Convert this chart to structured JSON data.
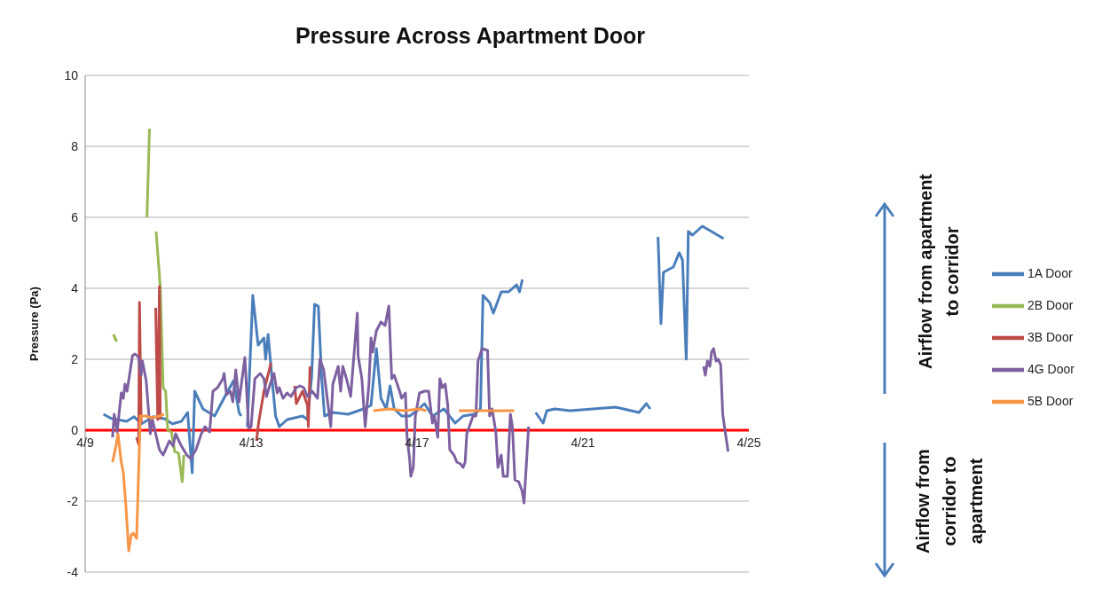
{
  "chart_data": {
    "type": "line",
    "title": "Pressure Across Apartment Door",
    "ylabel": "Pressure (Pa)",
    "annotations": [
      "Airflow from apartment to corridor",
      "Airflow from corridor to apartment"
    ],
    "xlim": [
      "--04-09",
      "--04-25"
    ],
    "xticks": [
      {
        "value": "--04-09",
        "label": "4/9"
      },
      {
        "value": "--04-13",
        "label": "4/13"
      },
      {
        "value": "--04-17",
        "label": "4/17"
      },
      {
        "value": "--04-21",
        "label": "4/21"
      },
      {
        "value": "--04-25",
        "label": "4/25"
      }
    ],
    "ylim": [
      -4,
      10
    ],
    "yticks": [
      -4,
      -2,
      0,
      2,
      4,
      6,
      8,
      10
    ],
    "grid": "y",
    "legend": "right",
    "marker": "none",
    "series": [
      {
        "name": "1A Door",
        "color": "#4a7ebb",
        "x": [
          "--04-09T10:34",
          "--04-09T15:07",
          "--04-10T00:00",
          "--04-10T04:19",
          "--04-10T08:38",
          "--04-10T15:22",
          "--04-10T22:05",
          "--04-11T02:24",
          "--04-11T07:41",
          "--04-11T11:17",
          "--04-11T13:55",
          "--04-11T15:22",
          "--04-11T20:10",
          "--04-12T02:53",
          "--04-12T09:22",
          "--04-12T13:55",
          "--04-12T17:02",
          "--04-12T18:14",
          "--04-12T20:24",
          "--04-12T21:50",
          "--04-13T00:58",
          "--04-13T04:05",
          "--04-13T07:26",
          "--04-13T08:24",
          "--04-13T09:50",
          "--04-13T12:00",
          "--04-13T14:10",
          "--04-13T16:19",
          "--04-13T20:53",
          "--04-14T01:12",
          "--04-14T05:46",
          "--04-14T08:38",
          "--04-14T11:02",
          "--04-14T12:43",
          "--04-14T14:53",
          "--04-14T16:48",
          "--04-14T18:29",
          "--04-14T23:17",
          "--04-15T08:10",
          "--04-15T17:02",
          "--04-15T21:22",
          "--04-16T00:29",
          "--04-16T03:07",
          "--04-16T06:14",
          "--04-16T08:24",
          "--04-16T10:48",
          "--04-16T15:07",
          "--04-16T19:41",
          "--04-17T00:00",
          "--04-17T04:19",
          "--04-17T08:53",
          "--04-17T15:36",
          "--04-17T22:05",
          "--04-18T02:38",
          "--04-18T09:07",
          "--04-18T12:43",
          "--04-18T14:10",
          "--04-18T18:00",
          "--04-18T20:10",
          "--04-19T00:43",
          "--04-19T05:02",
          "--04-19T09:36",
          "--04-19T11:17",
          "--04-19T12:58",
          "--04-19T16:48",
          "--04-19T20:38",
          "--04-20T00:58",
          "--04-20T03:07",
          "--04-20T07:41",
          "--04-20T16:34",
          "--04-21T05:46",
          "--04-21T18:58",
          "--04-22T08:24",
          "--04-22T12:43",
          "--04-22T14:53",
          "--04-22T16:48",
          "--04-22T19:26",
          "--04-22T21:07",
          "--04-22T22:34",
          "--04-23T04:19",
          "--04-23T07:41",
          "--04-23T09:36",
          "--04-23T11:46",
          "--04-23T12:58",
          "--04-23T15:22",
          "--04-23T21:07",
          "--04-24T02:24",
          "--04-24T09:22"
        ],
        "values": [
          0.45,
          0.33,
          0.25,
          0.38,
          0.18,
          0.38,
          0.32,
          0.18,
          0.25,
          0.5,
          -1.2,
          1.1,
          0.6,
          0.4,
          1.0,
          1.4,
          0.5,
          0.4,
          null,
          0.1,
          3.8,
          2.4,
          2.6,
          2.0,
          2.7,
          1.5,
          0.4,
          0.1,
          0.3,
          0.35,
          0.4,
          0.3,
          1.5,
          3.55,
          3.5,
          1.5,
          0.4,
          0.5,
          0.45,
          0.6,
          0.7,
          2.3,
          0.9,
          0.6,
          1.25,
          0.6,
          0.4,
          0.4,
          0.55,
          0.75,
          0.4,
          0.6,
          0.2,
          0.4,
          0.45,
          0.6,
          3.8,
          3.6,
          3.3,
          3.9,
          3.9,
          4.1,
          3.9,
          4.25,
          null,
          0.5,
          0.2,
          0.55,
          0.6,
          0.55,
          0.6,
          0.65,
          0.5,
          0.75,
          0.6,
          null,
          5.45,
          3.0,
          4.45,
          4.6,
          5.0,
          4.8,
          2.0,
          5.6,
          5.5,
          5.75,
          5.6,
          5.4
        ]
      },
      {
        "name": "2B Door",
        "color": "#98b954",
        "x": [
          "--04-09T16:19",
          "--04-09T18:14",
          "--04-09T21:36",
          "--04-10T11:46",
          "--04-10T13:12",
          "--04-10T14:24",
          "--04-10T17:02",
          "--04-10T19:26",
          "--04-10T21:07",
          "--04-10T22:34",
          "--04-10T23:46",
          "--04-11T01:55",
          "--04-11T03:50",
          "--04-11T06:00",
          "--04-11T08:10",
          "--04-11T09:07"
        ],
        "values": [
          2.7,
          2.5,
          null,
          6.0,
          8.5,
          null,
          5.6,
          4.05,
          1.2,
          1.1,
          0,
          -0.05,
          -0.6,
          -0.65,
          -1.45,
          -0.7
        ]
      },
      {
        "name": "3B Door",
        "color": "#be4b48",
        "x": [
          "--04-10T05:46",
          "--04-10T06:58",
          "--04-10T07:26",
          "--04-10T08:24",
          "--04-10T12:00",
          "--04-10T16:48",
          "--04-10T18:00",
          "--04-10T18:58",
          "--04-10T19:26",
          "--04-11T12:00",
          "--04-13T03:07",
          "--04-13T04:19",
          "--04-13T07:26",
          "--04-13T11:31",
          "--04-13T19:12",
          "--04-14T01:12",
          "--04-14T02:10",
          "--04-14T05:46",
          "--04-14T08:38",
          "--04-14T09:07",
          "--04-14T10:05"
        ],
        "values": [
          -0.2,
          -0.4,
          3.6,
          0.2,
          null,
          3.45,
          0.3,
          4.05,
          0.3,
          null,
          -0.3,
          0.2,
          1.1,
          1.9,
          null,
          1.25,
          0.75,
          1.1,
          0.7,
          0.1,
          1.8
        ]
      },
      {
        "name": "4G Door",
        "color": "#7d60a0",
        "x": [
          "--04-09T15:50",
          "--04-09T16:48",
          "--04-09T18:29",
          "--04-09T20:53",
          "--04-09T22:05",
          "--04-09T23:02",
          "--04-10T00:14",
          "--04-10T03:22",
          "--04-10T04:48",
          "--04-10T06:58",
          "--04-10T08:24",
          "--04-10T09:07",
          "--04-10T11:17",
          "--04-10T13:41",
          "--04-10T14:53",
          "--04-10T18:58",
          "--04-10T21:07",
          "--04-11T00:43",
          "--04-11T02:53",
          "--04-11T04:19",
          "--04-11T07:12",
          "--04-11T10:48",
          "--04-11T12:58",
          "--04-11T16:05",
          "--04-11T19:12",
          "--04-11T21:22",
          "--04-12T00:00",
          "--04-12T01:55",
          "--04-12T04:34",
          "--04-12T07:41",
          "--04-12T08:24",
          "--04-12T09:50",
          "--04-12T12:00",
          "--04-12T13:26",
          "--04-12T15:07",
          "--04-12T17:02",
          "--04-12T20:24",
          "--04-12T22:34",
          "--04-13T00:00",
          "--04-13T02:10",
          "--04-13T05:17",
          "--04-13T07:26",
          "--04-13T08:53",
          "--04-13T11:02",
          "--04-13T13:12",
          "--04-13T15:07",
          "--04-13T16:19",
          "--04-13T18:29",
          "--04-13T20:53",
          "--04-13T23:02",
          "--04-14T02:10",
          "--04-14T04:19",
          "--04-14T06:29",
          "--04-14T08:38",
          "--04-14T11:17",
          "--04-14T14:24",
          "--04-14T15:50",
          "--04-14T18:00",
          "--04-14T22:05",
          "--04-14T23:17",
          "--04-15T02:24",
          "--04-15T03:50",
          "--04-15T05:02",
          "--04-15T07:12",
          "--04-15T09:36",
          "--04-15T13:26",
          "--04-15T13:55",
          "--04-15T16:05",
          "--04-15T18:00",
          "--04-15T20:10",
          "--04-15T21:22",
          "--04-15T22:19",
          "--04-16T00:29",
          "--04-16T03:07",
          "--04-16T05:31",
          "--04-16T07:41",
          "--04-16T09:22",
          "--04-16T10:48",
          "--04-16T13:55",
          "--04-16T15:07",
          "--04-16T17:17",
          "--04-16T18:14",
          "--04-16T19:41",
          "--04-16T20:24",
          "--04-16T21:50",
          "--04-16T23:02",
          "--04-17T01:26",
          "--04-17T04:19",
          "--04-17T06:43",
          "--04-17T08:53",
          "--04-17T10:05",
          "--04-17T12:00",
          "--04-17T13:12",
          "--04-17T14:38",
          "--04-17T16:19",
          "--04-17T17:46",
          "--04-17T18:58",
          "--04-17T21:22",
          "--04-17T23:02",
          "--04-18T01:12",
          "--04-18T02:38",
          "--04-18T03:50",
          "--04-18T04:48",
          "--04-18T08:24",
          "--04-18T10:05",
          "--04-18T11:17",
          "--04-18T13:41",
          "--04-18T16:48",
          "--04-18T18:00",
          "--04-18T19:26",
          "--04-18T21:36",
          "--04-18T22:48",
          "--04-19T00:43",
          "--04-19T01:55",
          "--04-19T04:19",
          "--04-19T06:00",
          "--04-19T07:12",
          "--04-19T08:38",
          "--04-19T10:48",
          "--04-19T12:43",
          "--04-19T13:55",
          "--04-19T16:34",
          "--04-21T00:00",
          "--04-23T21:50",
          "--04-23T22:48",
          "--04-24T00:00",
          "--04-24T01:26",
          "--04-24T02:24",
          "--04-24T03:36",
          "--04-24T05:02",
          "--04-24T06:14",
          "--04-24T07:41",
          "--04-24T08:53",
          "--04-24T10:19",
          "--04-24T12:00"
        ],
        "values": [
          -0.2,
          0.45,
          -0.05,
          1.05,
          0.9,
          1.3,
          1.1,
          2.1,
          2.15,
          2.05,
          1.55,
          1.95,
          1.4,
          -0.1,
          0.3,
          -0.55,
          -0.7,
          -0.3,
          -0.45,
          -0.1,
          -0.4,
          -0.7,
          -0.8,
          -0.55,
          -0.1,
          0.1,
          -0.05,
          1.1,
          1.2,
          1.45,
          1.6,
          1.0,
          1.1,
          0.8,
          1.7,
          0.8,
          2.05,
          0.05,
          0.1,
          1.45,
          1.6,
          1.45,
          0.95,
          1.3,
          1.6,
          1.05,
          1.2,
          0.9,
          1.05,
          0.95,
          1.2,
          1.25,
          1.2,
          0.95,
          1.1,
          0.9,
          2.0,
          1.7,
          0.1,
          1.3,
          1.8,
          1.1,
          1.8,
          1.45,
          0.95,
          3.3,
          2.1,
          1.45,
          0.1,
          1.3,
          2.6,
          2.2,
          2.8,
          3.05,
          2.95,
          3.5,
          1.45,
          1.55,
          1.1,
          0.9,
          1.05,
          -0.2,
          -0.8,
          -1.3,
          -1.05,
          0.4,
          1.05,
          1.1,
          1.1,
          0.2,
          0.4,
          -0.2,
          1.45,
          1.2,
          1.3,
          0.7,
          -0.55,
          -0.7,
          -0.9,
          -0.95,
          -1.05,
          -0.9,
          -0.1,
          0.4,
          0.4,
          1.95,
          2.3,
          2.25,
          0.4,
          0.6,
          -0.05,
          -1.05,
          -0.7,
          -1.3,
          -1.3,
          0.45,
          0.1,
          -1.4,
          -1.45,
          -1.7,
          -2.05,
          0.1,
          null,
          1.8,
          1.55,
          1.95,
          1.8,
          2.2,
          2.3,
          1.95,
          2.0,
          1.85,
          0.45,
          -0.05,
          -0.6
        ]
      },
      {
        "name": "5B Door",
        "color": "#f79646",
        "x": [
          "--04-09T15:50",
          "--04-09T17:46",
          "--04-09T18:58",
          "--04-09T20:53",
          "--04-09T22:05",
          "--04-09T23:31",
          "--04-10T01:12",
          "--04-10T02:38",
          "--04-10T03:50",
          "--04-10T05:46",
          "--04-10T06:58",
          "--04-10T07:55",
          "--04-10T11:17",
          "--04-10T14:24",
          "--04-10T18:58",
          "--04-10T21:36",
          "--04-13T00:00",
          "--04-15T22:48",
          "--04-16T07:41",
          "--04-16T16:34",
          "--04-17T01:26",
          "--04-17T05:17",
          "--04-17T12:00",
          "--04-18T00:14",
          "--04-18T10:05",
          "--04-18T21:36",
          "--04-19T08:10"
        ],
        "values": [
          -0.9,
          -0.45,
          -0.1,
          -0.9,
          -1.2,
          -2.1,
          -3.4,
          -2.95,
          -2.9,
          -3.05,
          -1.1,
          0.4,
          0.4,
          0.35,
          0.4,
          0.45,
          null,
          0.55,
          0.6,
          0.55,
          0.6,
          0.55,
          null,
          0.55,
          0.55,
          0.55,
          0.55
        ]
      }
    ]
  }
}
